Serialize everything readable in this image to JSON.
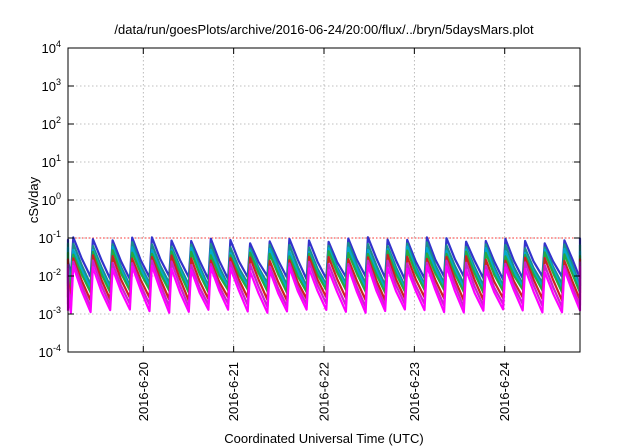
{
  "chart_data": {
    "type": "line",
    "title": "/data/run/goesPlots/archive/2016-06-24/20:00/flux/../bryn/5daysMars.plot",
    "xlabel": "Coordinated Universal Time (UTC)",
    "ylabel": "cSv/day",
    "y_scale": "log",
    "ylim": [
      0.0001,
      10000
    ],
    "y_ticks": [
      {
        "value": 0.0001,
        "base": "10",
        "exp": "-4"
      },
      {
        "value": 0.001,
        "base": "10",
        "exp": "-3"
      },
      {
        "value": 0.01,
        "base": "10",
        "exp": "-2"
      },
      {
        "value": 0.1,
        "base": "10",
        "exp": "-1"
      },
      {
        "value": 1,
        "base": "10",
        "exp": "0"
      },
      {
        "value": 10,
        "base": "10",
        "exp": "1"
      },
      {
        "value": 100,
        "base": "10",
        "exp": "2"
      },
      {
        "value": 1000,
        "base": "10",
        "exp": "3"
      },
      {
        "value": 10000,
        "base": "10",
        "exp": "4"
      }
    ],
    "xlim": [
      "2016-06-19T04:00",
      "2016-06-24T20:00"
    ],
    "x_ticks": [
      {
        "date": "2016-06-20T00:00",
        "label": "2016-6-20"
      },
      {
        "date": "2016-06-21T00:00",
        "label": "2016-6-21"
      },
      {
        "date": "2016-06-22T00:00",
        "label": "2016-6-22"
      },
      {
        "date": "2016-06-23T00:00",
        "label": "2016-6-23"
      },
      {
        "date": "2016-06-24T00:00",
        "label": "2016-6-24"
      }
    ],
    "grid": true,
    "reference_line": {
      "value": 0.1,
      "color": "#ff3333",
      "style": "dotted"
    },
    "pattern": {
      "cycles_per_day": 4.6,
      "note_peak": 0.1
    },
    "series": [
      {
        "color": "#3333cc",
        "peak": 0.09,
        "trough": 0.009
      },
      {
        "color": "#1a8c8c",
        "peak": 0.065,
        "trough": 0.006
      },
      {
        "color": "#00aacc",
        "peak": 0.05,
        "trough": 0.005
      },
      {
        "color": "#22aa44",
        "peak": 0.04,
        "trough": 0.004
      },
      {
        "color": "#cc2222",
        "peak": 0.03,
        "trough": 0.0025
      },
      {
        "color": "#cc22cc",
        "peak": 0.022,
        "trough": 0.0017
      },
      {
        "color": "#ff00ff",
        "peak": 0.016,
        "trough": 0.0012
      }
    ]
  }
}
